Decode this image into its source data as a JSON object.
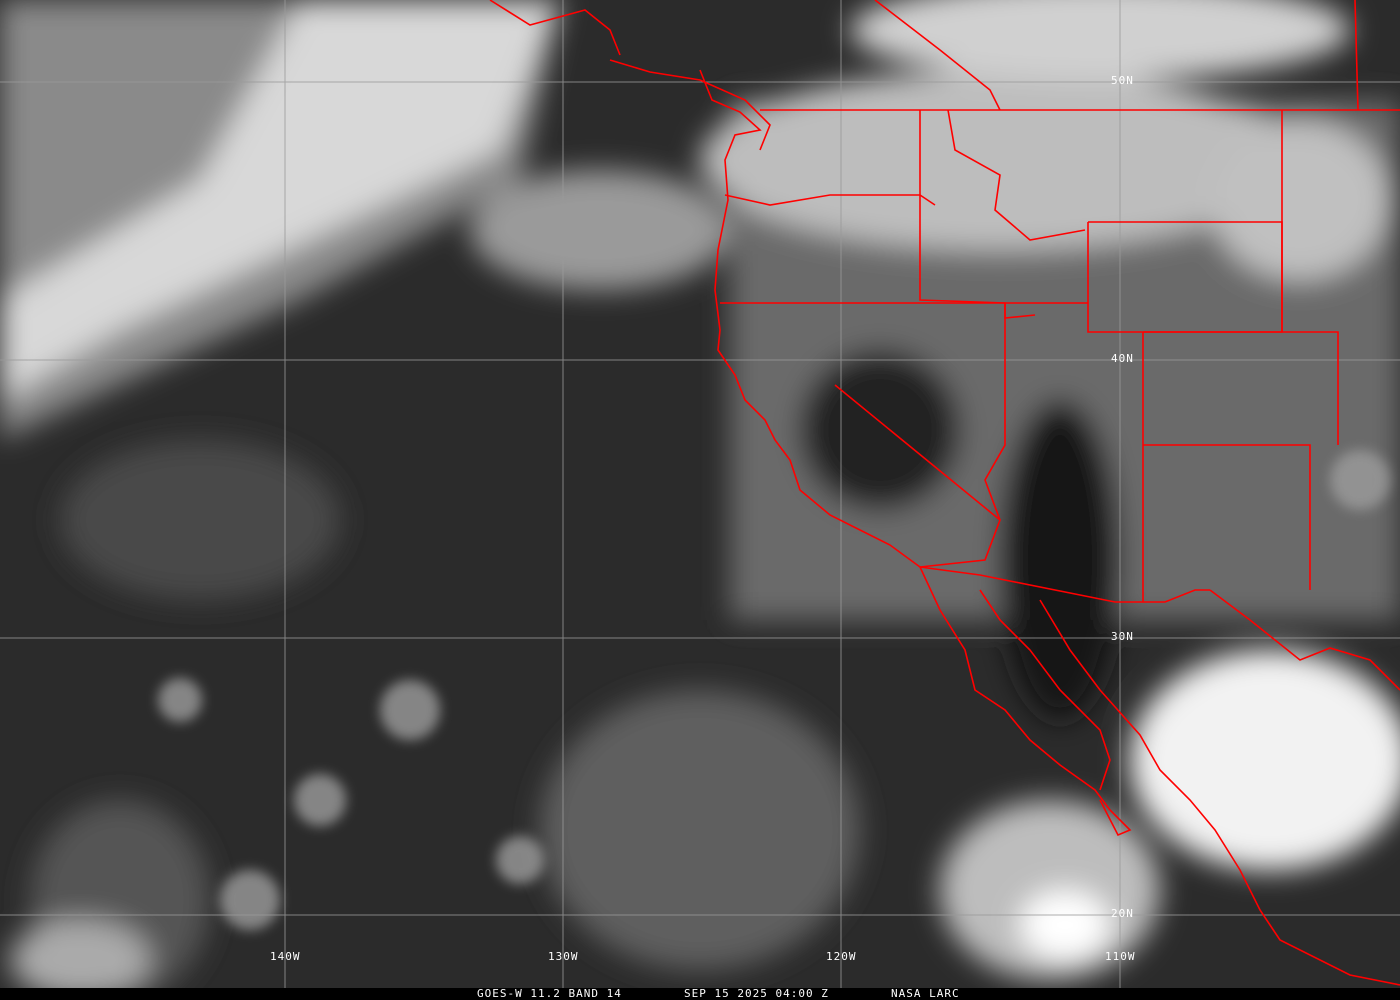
{
  "caption": {
    "satellite_band": "GOES-W 11.2 BAND 14",
    "timestamp": "SEP 15 2025 04:00 Z",
    "credit": "NASA LARC"
  },
  "grid": {
    "latitude_labels": [
      "50N",
      "40N",
      "30N",
      "20N"
    ],
    "longitude_labels": [
      "140W",
      "130W",
      "120W",
      "110W"
    ]
  },
  "colors": {
    "boundaries": "#ff0000",
    "grid": "#9a9a9a",
    "caption_bg": "#000000",
    "caption_text": "#ffffff"
  }
}
